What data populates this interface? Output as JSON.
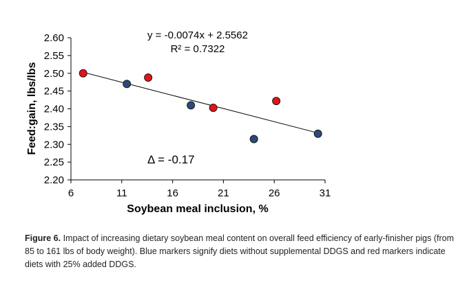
{
  "chart_data": {
    "type": "scatter",
    "xlabel": "Soybean meal inclusion, %",
    "ylabel": "Feed:gain, lbs/lbs",
    "xlim": [
      6,
      31
    ],
    "ylim": [
      2.2,
      2.6
    ],
    "xticks": [
      "6",
      "11",
      "16",
      "21",
      "26",
      "31"
    ],
    "yticks": [
      "2.20",
      "2.25",
      "2.30",
      "2.35",
      "2.40",
      "2.45",
      "2.50",
      "2.55",
      "2.60"
    ],
    "grid": false,
    "series": [
      {
        "color": "#2b4a7a",
        "points": [
          {
            "x": 11.5,
            "y": 2.47
          },
          {
            "x": 17.8,
            "y": 2.41
          },
          {
            "x": 24.0,
            "y": 2.315
          },
          {
            "x": 30.3,
            "y": 2.33
          }
        ]
      },
      {
        "color": "#e3131b",
        "points": [
          {
            "x": 7.2,
            "y": 2.5
          },
          {
            "x": 13.6,
            "y": 2.488
          },
          {
            "x": 20.0,
            "y": 2.403
          },
          {
            "x": 26.2,
            "y": 2.422
          }
        ]
      }
    ],
    "trendline": {
      "slope": -0.0074,
      "intercept": 2.5562,
      "x_from": 7.2,
      "x_to": 30.3
    },
    "annotations": {
      "equation": "y = -0.0074x + 2.5562",
      "r_squared": "R² = 0.7322",
      "delta": "Δ = -0.17"
    }
  },
  "caption": {
    "label": "Figure 6.",
    "text": " Impact of increasing dietary soybean meal content on overall feed efficiency of early-finisher pigs (from 85 to 161 lbs of body weight). Blue markers signify diets without supplemental DDGS and red markers indicate diets with 25% added DDGS."
  }
}
